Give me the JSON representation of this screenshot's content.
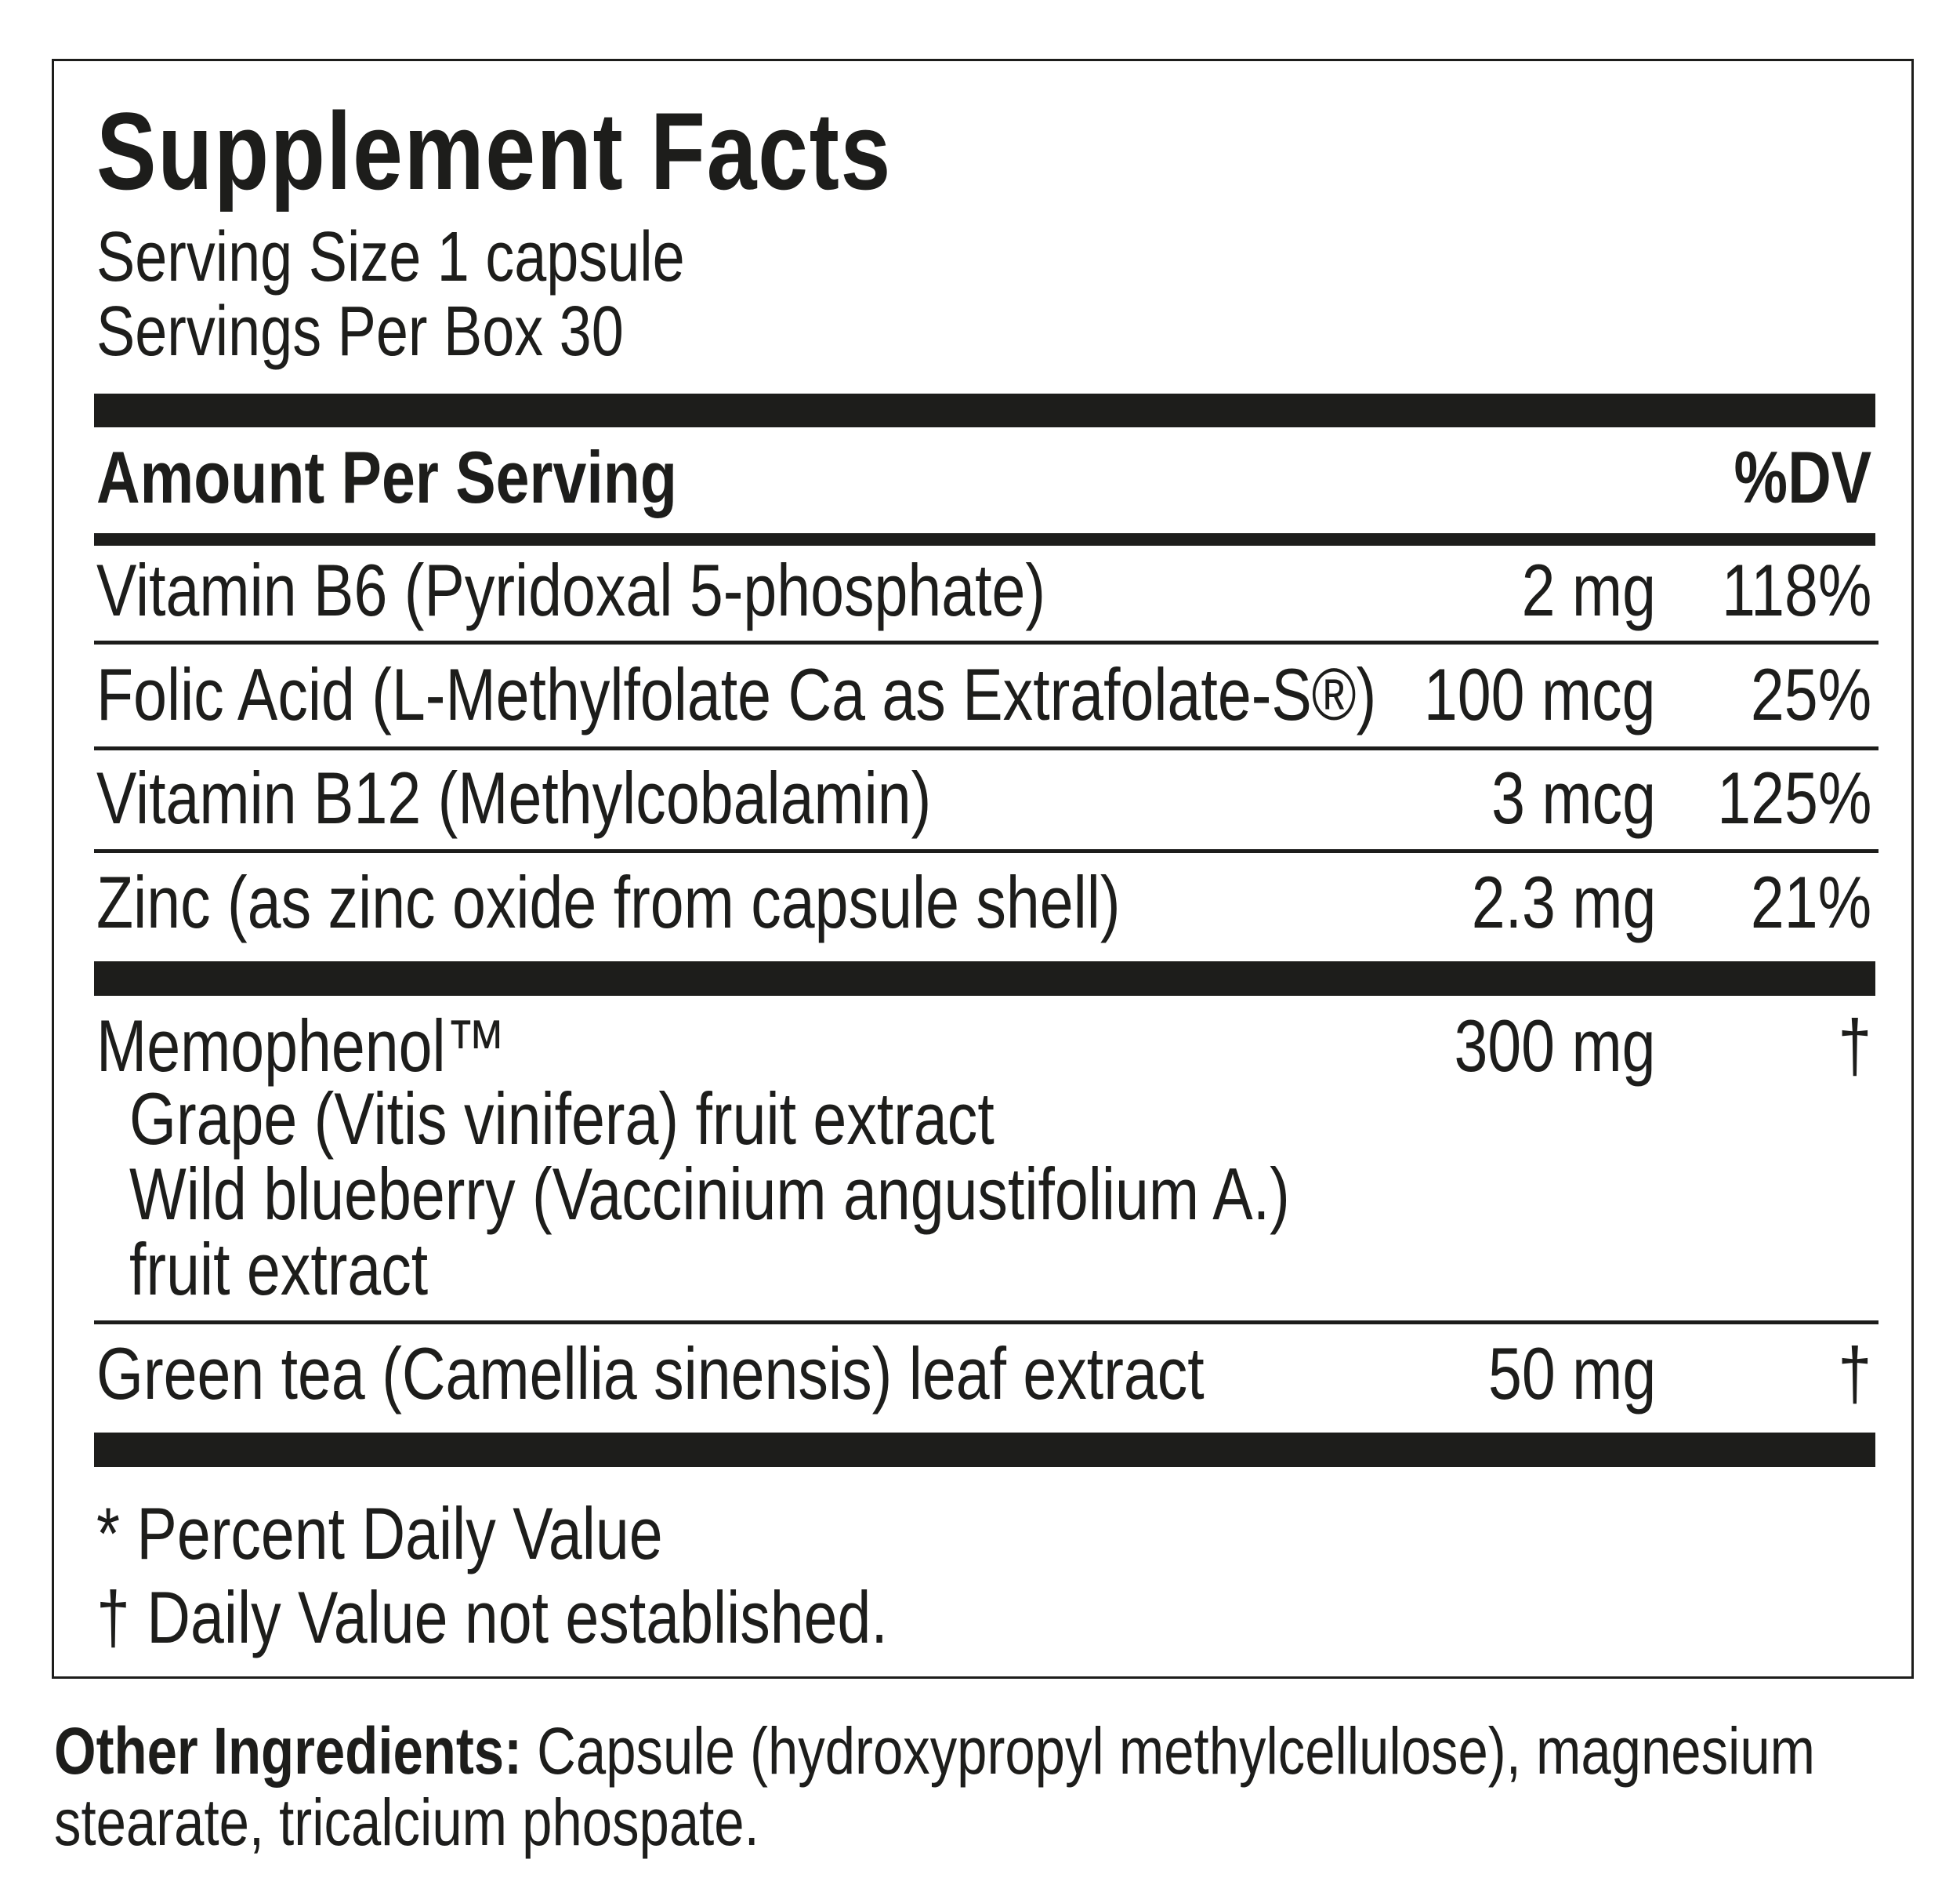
{
  "title": "Supplement Facts",
  "serving_size": "Serving Size 1 capsule",
  "servings_per": "Servings Per Box 30",
  "header": {
    "amount": "Amount Per Serving",
    "dv": "%DV"
  },
  "nutrients": [
    {
      "name": "Vitamin B6 (Pyridoxal 5-phosphate)",
      "amount": "2 mg",
      "dv": "118%"
    },
    {
      "name": "Folic Acid (L-Methylfolate Ca as Extrafolate-S®)",
      "amount": "100 mcg",
      "dv": "25%"
    },
    {
      "name": "Vitamin B12 (Methylcobalamin)",
      "amount": "3 mcg",
      "dv": "125%"
    },
    {
      "name": "Zinc (as zinc oxide from capsule shell)",
      "amount": "2.3 mg",
      "dv": "21%"
    }
  ],
  "blend": {
    "name": "Memophenol™",
    "amount": "300 mg",
    "dv": "†",
    "sub": [
      "Grape (Vitis vinifera) fruit extract",
      "Wild blueberry (Vaccinium angustifolium A.)",
      "fruit extract"
    ]
  },
  "green_tea": {
    "name": "Green tea (Camellia sinensis) leaf extract",
    "amount": "50 mg",
    "dv": "†"
  },
  "footnotes": [
    "* Percent Daily Value",
    "† Daily Value not established."
  ],
  "other": {
    "label": "Other Ingredients:",
    "line1": " Capsule (hydroxypropyl methylcellulose), magnesium",
    "line2": "stearate, tricalcium phospate."
  }
}
